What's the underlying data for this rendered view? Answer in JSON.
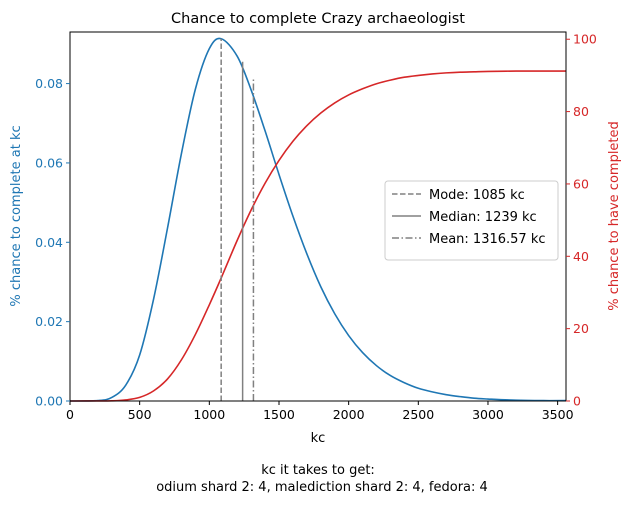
{
  "chart_data": {
    "type": "line",
    "title": "Chance to complete Crazy archaeologist",
    "xlabel": "kc",
    "ylabel_left": "% chance to complete at kc",
    "ylabel_right": "% chance to have completed",
    "caption_line1": "kc it takes to get:",
    "caption_line2": "odium shard 2: 4,  malediction shard 2: 4,  fedora: 4",
    "xlim": [
      0,
      3560
    ],
    "ylim_left": [
      0,
      0.093
    ],
    "ylim_right": [
      0,
      102
    ],
    "x_ticks": [
      0,
      500,
      1000,
      1500,
      2000,
      2500,
      3000,
      3500
    ],
    "x_tick_labels": [
      "0",
      "500",
      "1000",
      "1500",
      "2000",
      "2500",
      "3000",
      "3500"
    ],
    "y_left_ticks": [
      0,
      0.02,
      0.04,
      0.06,
      0.08
    ],
    "y_left_tick_labels": [
      "0.00",
      "0.02",
      "0.04",
      "0.06",
      "0.08"
    ],
    "y_right_ticks": [
      0,
      20,
      40,
      60,
      80,
      100
    ],
    "y_right_tick_labels": [
      "0",
      "20",
      "40",
      "60",
      "80",
      "100"
    ],
    "colors": {
      "left": "#1f77b4",
      "right": "#d62728",
      "vline": "#808080"
    },
    "series": [
      {
        "axis": "left",
        "x": [
          0,
          200,
          300,
          400,
          500,
          600,
          700,
          800,
          900,
          1000,
          1085,
          1200,
          1300,
          1400,
          1500,
          1600,
          1700,
          1800,
          1900,
          2000,
          2100,
          2200,
          2300,
          2400,
          2500,
          2600,
          2700,
          2800,
          2900,
          3000,
          3200,
          3400,
          3560
        ],
        "values": [
          0,
          0.0001,
          0.0009,
          0.004,
          0.0116,
          0.0257,
          0.0436,
          0.0624,
          0.0786,
          0.0888,
          0.0913,
          0.0869,
          0.0784,
          0.0681,
          0.0571,
          0.0466,
          0.0371,
          0.0288,
          0.022,
          0.0165,
          0.0122,
          0.0089,
          0.0064,
          0.0046,
          0.0032,
          0.0023,
          0.0016,
          0.0011,
          0.0007,
          0.0005,
          0.0002,
          0.0001,
          0.0001
        ]
      },
      {
        "axis": "right",
        "x": [
          0,
          200,
          300,
          400,
          500,
          600,
          700,
          800,
          900,
          1000,
          1085,
          1200,
          1300,
          1400,
          1500,
          1600,
          1700,
          1800,
          1900,
          2000,
          2100,
          2200,
          2300,
          2400,
          2500,
          2600,
          2700,
          2800,
          2900,
          3000,
          3200,
          3400,
          3560
        ],
        "values": [
          0,
          0.01,
          0.05,
          0.3,
          1.0,
          2.8,
          6.1,
          11.4,
          18.4,
          26.6,
          34.0,
          44.4,
          52.8,
          60.2,
          66.5,
          71.8,
          76.1,
          79.6,
          82.4,
          84.6,
          86.3,
          87.7,
          88.7,
          89.5,
          90.0,
          90.4,
          90.7,
          90.9,
          91.0,
          91.1,
          91.2,
          91.2,
          91.2
        ]
      }
    ],
    "vlines": [
      {
        "label": "Mode: 1085 kc",
        "x": 1085,
        "style": "dashed",
        "top_left": 0.0913
      },
      {
        "label": "Median: 1239 kc",
        "x": 1239,
        "style": "solid",
        "top_left": 0.0855
      },
      {
        "label": "Mean: 1316.57 kc",
        "x": 1316.57,
        "style": "dashdot",
        "top_left": 0.0812
      }
    ],
    "legend_position": "center-right"
  }
}
